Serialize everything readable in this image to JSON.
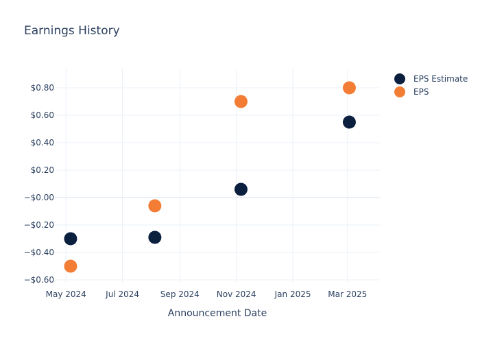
{
  "chart_data": {
    "type": "scatter",
    "title": "Earnings History",
    "xlabel": "Announcement Date",
    "ylabel": "",
    "x_ticks": [
      "2024-05-01",
      "2024-07-01",
      "2024-09-01",
      "2024-11-01",
      "2025-01-01",
      "2025-03-01"
    ],
    "x_tick_labels": [
      "May 2024",
      "Jul 2024",
      "Sep 2024",
      "Nov 2024",
      "Jan 2025",
      "Mar 2025"
    ],
    "xlim": [
      "2024-04-19",
      "2025-04-05"
    ],
    "y_ticks": [
      -0.6,
      -0.4,
      -0.2,
      0,
      0.2,
      0.4,
      0.6,
      0.8
    ],
    "y_tick_labels": [
      "−$0.60",
      "−$0.40",
      "−$0.20",
      "−$0.00",
      "$0.20",
      "$0.40",
      "$0.60",
      "$0.80"
    ],
    "ylim": [
      -0.62,
      0.94
    ],
    "grid": true,
    "legend_position": "top-right",
    "series": [
      {
        "name": "EPS Estimate",
        "color": "#0b1f3f",
        "points": [
          {
            "x": "2024-05-06",
            "y": -0.3
          },
          {
            "x": "2024-08-05",
            "y": -0.29
          },
          {
            "x": "2024-11-06",
            "y": 0.06
          },
          {
            "x": "2025-03-03",
            "y": 0.55
          }
        ]
      },
      {
        "name": "EPS",
        "color": "#f47d35",
        "points": [
          {
            "x": "2024-05-06",
            "y": -0.5
          },
          {
            "x": "2024-08-05",
            "y": -0.06
          },
          {
            "x": "2024-11-06",
            "y": 0.7
          },
          {
            "x": "2025-03-03",
            "y": 0.8
          }
        ]
      }
    ]
  }
}
